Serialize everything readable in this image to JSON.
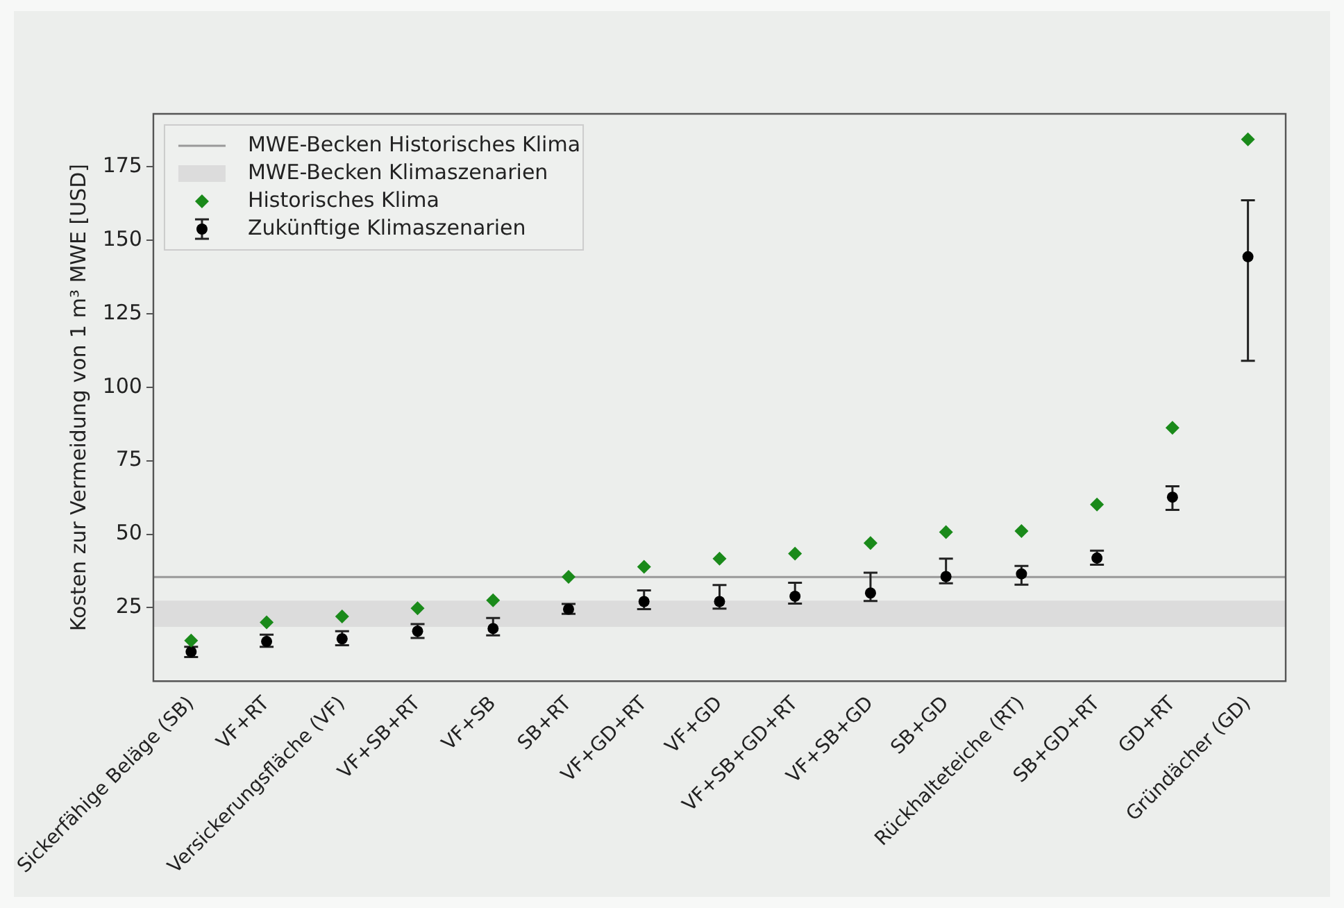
{
  "chart_data": {
    "type": "scatter",
    "ylabel": "Kosten zur Vermeidung von 1 m³ MWE [USD]",
    "categories": [
      "Sickerfähige Beläge (SB)",
      "VF+RT",
      "Versickerungsfläche (VF)",
      "VF+SB+RT",
      "VF+SB",
      "SB+RT",
      "VF+GD+RT",
      "VF+GD",
      "VF+SB+GD+RT",
      "VF+SB+GD",
      "SB+GD",
      "Rückhalteteiche (RT)",
      "SB+GD+RT",
      "GD+RT",
      "Gründächer (GD)"
    ],
    "series": [
      {
        "name": "Historisches Klima",
        "color": "#1a8a1a",
        "marker": "diamond",
        "values": [
          13.8,
          20.0,
          22.0,
          24.8,
          27.5,
          35.5,
          38.9,
          41.7,
          43.4,
          47.0,
          50.7,
          51.1,
          60.1,
          86.2,
          184.3
        ]
      },
      {
        "name": "Zukünftige Klimaszenarien",
        "color": "#000000",
        "marker": "circle",
        "values": [
          10.0,
          13.5,
          14.4,
          17.0,
          17.9,
          24.5,
          27.1,
          27.1,
          28.9,
          30.0,
          35.6,
          36.5,
          41.9,
          62.6,
          144.4
        ],
        "errors": [
          [
            8.2,
            11.7
          ],
          [
            11.7,
            15.8
          ],
          [
            12.2,
            17.0
          ],
          [
            14.7,
            19.4
          ],
          [
            15.6,
            21.5
          ],
          [
            22.9,
            26.3
          ],
          [
            24.5,
            30.9
          ],
          [
            24.7,
            32.7
          ],
          [
            26.4,
            33.5
          ],
          [
            27.3,
            36.9
          ],
          [
            33.3,
            41.7
          ],
          [
            32.8,
            39.2
          ],
          [
            39.6,
            44.4
          ],
          [
            58.3,
            66.3
          ],
          [
            109.0,
            163.6
          ]
        ]
      }
    ],
    "ref_lines": [
      {
        "axis": "y",
        "value": 35.4,
        "label": "MWE-Becken Historisches Klima",
        "color": "#999999",
        "line_style": "solid"
      }
    ],
    "bands": [
      {
        "axis": "y",
        "from": 18.5,
        "to": 27.4,
        "label": "MWE-Becken Klimaszenarien",
        "color": "#dcdcdc"
      }
    ],
    "ylim": [
      0,
      193
    ],
    "yticks": [
      25,
      50,
      75,
      100,
      125,
      150,
      175
    ],
    "grid": false,
    "legend": "top left"
  }
}
